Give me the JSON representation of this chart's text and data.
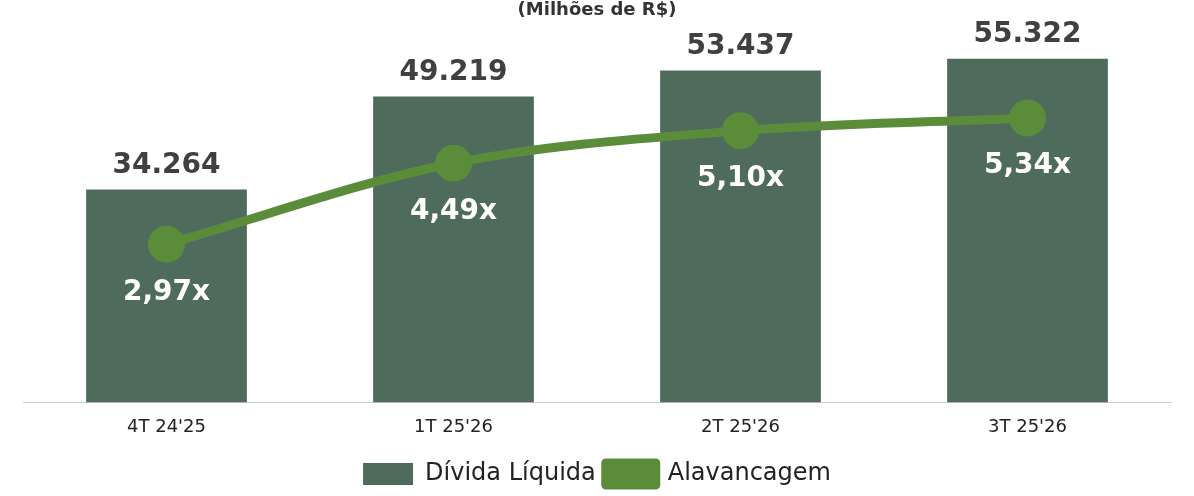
{
  "chart_data": {
    "type": "bar",
    "title": "(Milhões de R$)",
    "categories": [
      "4T 24'25",
      "1T 25'26",
      "2T 25'26",
      "3T 25'26"
    ],
    "series": [
      {
        "name": "Dívida Líquida",
        "color": "#4f6b5c",
        "values": [
          34264,
          49219,
          53437,
          55322
        ],
        "value_labels": [
          "34.264",
          "49.219",
          "53.437",
          "55.322"
        ]
      },
      {
        "name": "Alavancagem",
        "type": "line",
        "axis": "y2",
        "color": "#5b8c3a",
        "values": [
          2.97,
          4.49,
          5.1,
          5.34
        ],
        "value_labels": [
          "2,97x",
          "4,49x",
          "5,10x",
          "5,34x"
        ]
      }
    ],
    "tick_labels": "x",
    "grid": false,
    "legend": "bottom",
    "marker": "circle",
    "line_style": "solid"
  }
}
